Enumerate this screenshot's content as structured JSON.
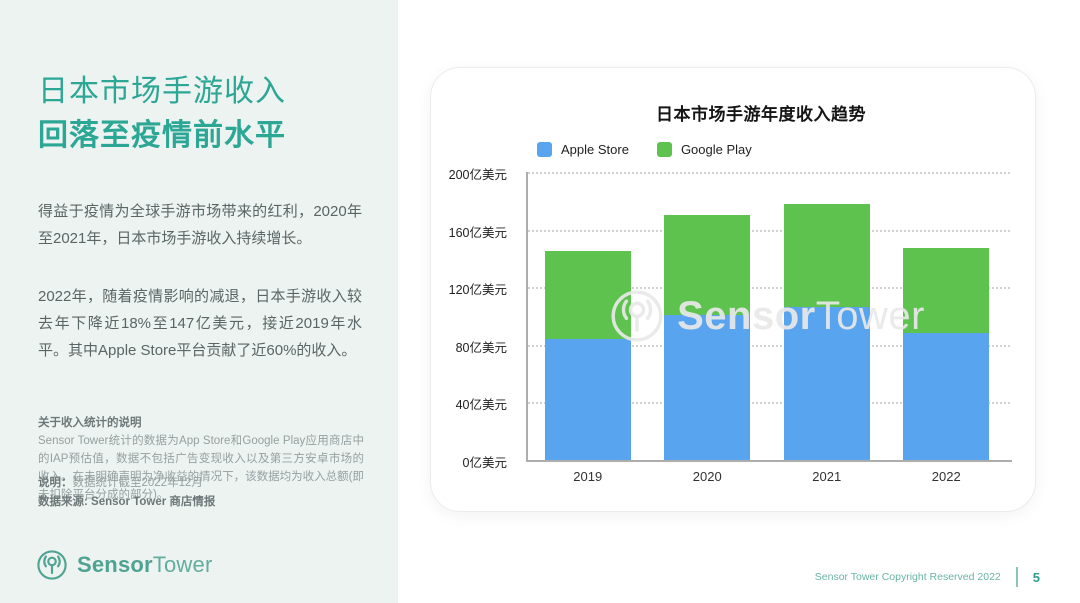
{
  "sidebar": {
    "title_line1": "日本市场手游收入",
    "title_line2": "回落至疫情前水平",
    "para1": "得益于疫情为全球手游市场带来的红利，2020年至2021年，日本市场手游收入持续增长。",
    "para2": "2022年，随着疫情影响的减退，日本手游收入较去年下降近18%至147亿美元，接近2019年水平。其中Apple Store平台贡献了近60%的收入。",
    "note_heading": "关于收入统计的说明",
    "note_body": "Sensor Tower统计的数据为App Store和Google Play应用商店中的IAP预估值，数据不包括广告变现收入以及第三方安卓市场的收入。在未明确声明为净收益的情况下，该数据均为收入总额(即未扣除平台分成的部分)。",
    "note_label": "说明：",
    "note_value": "数据统计截至2022年12月",
    "source_line": "数据来源: Sensor Tower 商店情报",
    "logo_bold": "Sensor",
    "logo_light": "Tower"
  },
  "footer": {
    "copyright": "Sensor Tower Copyright Reserved 2022",
    "page_number": "5"
  },
  "watermark": {
    "bold": "Sensor",
    "light": "Tower"
  },
  "chart_data": {
    "type": "bar",
    "stacked": true,
    "title": "日本市场手游年度收入趋势",
    "categories": [
      "2019",
      "2020",
      "2021",
      "2022"
    ],
    "series": [
      {
        "name": "Apple Store",
        "color": "#58a4ee",
        "values": [
          84,
          101,
          106,
          88
        ]
      },
      {
        "name": "Google Play",
        "color": "#5ec24f",
        "values": [
          61,
          69,
          72,
          59
        ]
      }
    ],
    "totals": [
      145,
      170,
      178,
      147
    ],
    "unit": "亿美元",
    "ylim": [
      0,
      200
    ],
    "yticks": [
      0,
      40,
      80,
      120,
      160,
      200
    ],
    "ytick_suffix": "亿美元",
    "grid": "horizontal-dotted",
    "legend_position": "top-left"
  }
}
